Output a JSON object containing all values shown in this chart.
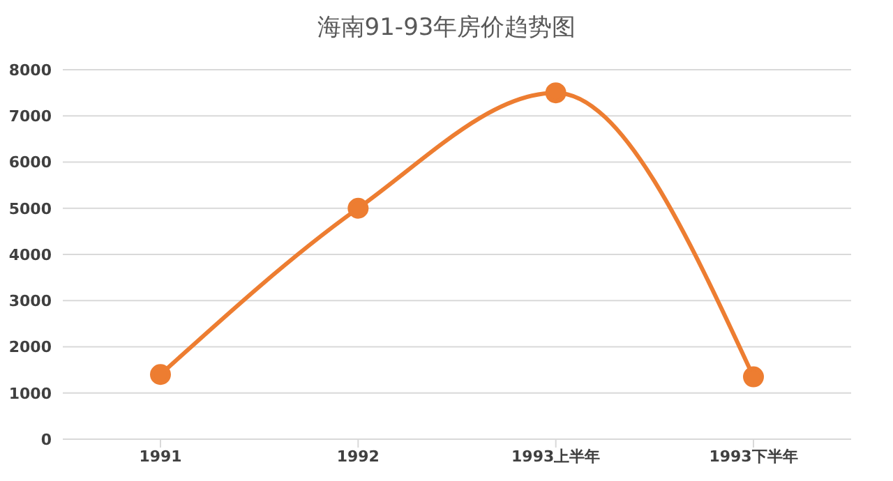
{
  "chart_data": {
    "type": "line",
    "title": "海南91-93年房价趋势图",
    "categories": [
      "1991",
      "1992",
      "1993上半年",
      "1993下半年"
    ],
    "series": [
      {
        "color": "#ed7d31",
        "values": [
          1400,
          5000,
          7500,
          1350
        ]
      }
    ],
    "ylim": [
      0,
      8000
    ],
    "yticks": [
      0,
      1000,
      2000,
      3000,
      4000,
      5000,
      6000,
      7000,
      8000
    ],
    "grid": "y",
    "legend": false,
    "marker": "circle",
    "line_style": "solid"
  }
}
